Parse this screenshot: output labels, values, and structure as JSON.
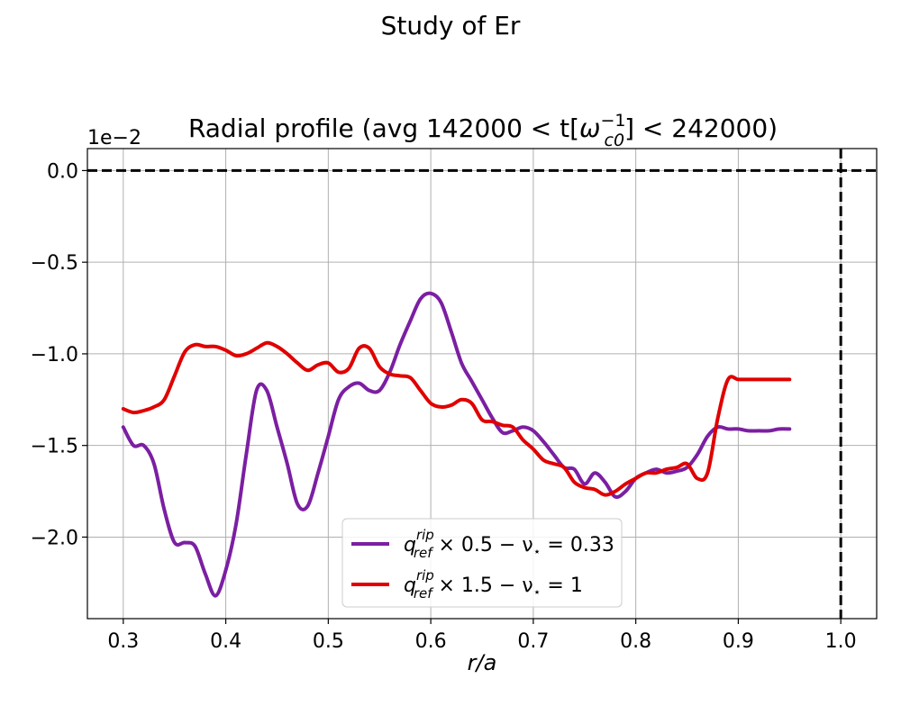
{
  "figure": {
    "suptitle": "Study of Er"
  },
  "chart_data": {
    "type": "line",
    "title_prefix": "Radial profile (avg 142000 < t[",
    "title_symbol": "ω",
    "title_sup": "−1",
    "title_sub": "c0",
    "title_suffix": "] < 242000)",
    "xlabel": "r/a",
    "ylabel": "",
    "offset_text": "1e−2",
    "xlim": [
      0.265,
      1.035
    ],
    "ylim": [
      -2.445,
      0.12
    ],
    "y_scale_factor": 0.01,
    "xticks": [
      0.3,
      0.4,
      0.5,
      0.6,
      0.7,
      0.8,
      0.9,
      1.0
    ],
    "xtick_labels": [
      "0.3",
      "0.4",
      "0.5",
      "0.6",
      "0.7",
      "0.8",
      "0.9",
      "1.0"
    ],
    "yticks": [
      0.0,
      -0.5,
      -1.0,
      -1.5,
      -2.0
    ],
    "ytick_labels": [
      "0.0",
      "−0.5",
      "−1.0",
      "−1.5",
      "−2.0"
    ],
    "grid": true,
    "legend_position": "lower center",
    "reference_lines": [
      {
        "orientation": "horizontal",
        "value": 0.0,
        "style": "dashed",
        "color": "#000000"
      },
      {
        "orientation": "vertical",
        "value": 1.0,
        "style": "dashed",
        "color": "#000000"
      }
    ],
    "series": [
      {
        "name": "q_ref^rip × 0.5 − ν⋆ = 0.33",
        "legend_q": "q",
        "legend_sup": "rip",
        "legend_sub": "ref",
        "legend_rest": " × 0.5 − ν",
        "legend_star": "⋆",
        "legend_tail": " = 0.33",
        "color": "#7b1fa2",
        "x": [
          0.3,
          0.31,
          0.32,
          0.33,
          0.34,
          0.35,
          0.36,
          0.37,
          0.38,
          0.39,
          0.4,
          0.41,
          0.42,
          0.43,
          0.44,
          0.45,
          0.46,
          0.47,
          0.48,
          0.49,
          0.5,
          0.51,
          0.52,
          0.53,
          0.54,
          0.55,
          0.56,
          0.57,
          0.58,
          0.59,
          0.6,
          0.61,
          0.62,
          0.63,
          0.64,
          0.65,
          0.66,
          0.67,
          0.68,
          0.69,
          0.7,
          0.71,
          0.72,
          0.73,
          0.74,
          0.75,
          0.76,
          0.77,
          0.78,
          0.79,
          0.8,
          0.81,
          0.82,
          0.83,
          0.84,
          0.85,
          0.86,
          0.87,
          0.88,
          0.89,
          0.9,
          0.91,
          0.92,
          0.93,
          0.94,
          0.95
        ],
        "values": [
          -1.4,
          -1.5,
          -1.5,
          -1.6,
          -1.85,
          -2.03,
          -2.03,
          -2.05,
          -2.2,
          -2.32,
          -2.18,
          -1.93,
          -1.55,
          -1.2,
          -1.2,
          -1.4,
          -1.6,
          -1.82,
          -1.83,
          -1.65,
          -1.45,
          -1.25,
          -1.18,
          -1.16,
          -1.2,
          -1.2,
          -1.1,
          -0.95,
          -0.82,
          -0.7,
          -0.67,
          -0.72,
          -0.88,
          -1.05,
          -1.15,
          -1.25,
          -1.35,
          -1.43,
          -1.42,
          -1.4,
          -1.42,
          -1.48,
          -1.55,
          -1.62,
          -1.63,
          -1.71,
          -1.65,
          -1.7,
          -1.78,
          -1.75,
          -1.68,
          -1.65,
          -1.63,
          -1.65,
          -1.64,
          -1.62,
          -1.55,
          -1.45,
          -1.4,
          -1.41,
          -1.41,
          -1.42,
          -1.42,
          -1.42,
          -1.41,
          -1.41
        ]
      },
      {
        "name": "q_ref^rip × 1.5 − ν⋆ = 1",
        "legend_q": "q",
        "legend_sup": "rip",
        "legend_sub": "ref",
        "legend_rest": " × 1.5 − ν",
        "legend_star": "⋆",
        "legend_tail": " = 1",
        "color": "#e00000",
        "x": [
          0.3,
          0.31,
          0.32,
          0.33,
          0.34,
          0.35,
          0.36,
          0.37,
          0.38,
          0.39,
          0.4,
          0.41,
          0.42,
          0.43,
          0.44,
          0.45,
          0.46,
          0.47,
          0.48,
          0.49,
          0.5,
          0.51,
          0.52,
          0.53,
          0.54,
          0.55,
          0.56,
          0.57,
          0.58,
          0.59,
          0.6,
          0.61,
          0.62,
          0.63,
          0.64,
          0.65,
          0.66,
          0.67,
          0.68,
          0.69,
          0.7,
          0.71,
          0.72,
          0.73,
          0.74,
          0.75,
          0.76,
          0.77,
          0.78,
          0.79,
          0.8,
          0.81,
          0.82,
          0.83,
          0.84,
          0.85,
          0.86,
          0.87,
          0.88,
          0.89,
          0.9,
          0.91,
          0.92,
          0.93,
          0.94,
          0.95
        ],
        "values": [
          -1.3,
          -1.32,
          -1.31,
          -1.29,
          -1.25,
          -1.12,
          -0.99,
          -0.95,
          -0.96,
          -0.96,
          -0.98,
          -1.01,
          -1.0,
          -0.97,
          -0.94,
          -0.96,
          -1.0,
          -1.05,
          -1.09,
          -1.06,
          -1.05,
          -1.1,
          -1.08,
          -0.97,
          -0.97,
          -1.07,
          -1.11,
          -1.12,
          -1.13,
          -1.2,
          -1.27,
          -1.29,
          -1.28,
          -1.25,
          -1.27,
          -1.36,
          -1.37,
          -1.39,
          -1.4,
          -1.47,
          -1.52,
          -1.58,
          -1.6,
          -1.62,
          -1.7,
          -1.73,
          -1.74,
          -1.77,
          -1.75,
          -1.71,
          -1.68,
          -1.65,
          -1.65,
          -1.63,
          -1.62,
          -1.6,
          -1.68,
          -1.65,
          -1.35,
          -1.14,
          -1.14,
          -1.14,
          -1.14,
          -1.14,
          -1.14,
          -1.14
        ]
      }
    ]
  }
}
